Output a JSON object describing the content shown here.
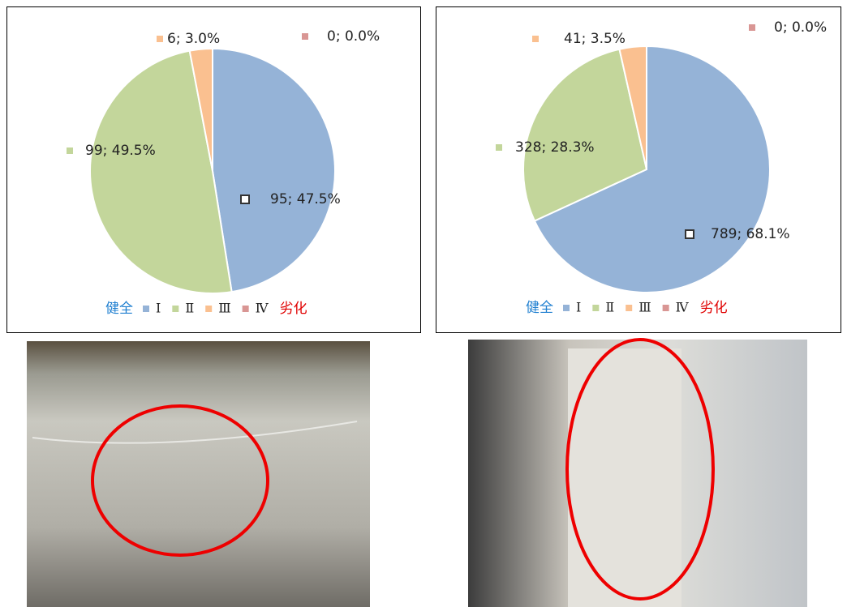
{
  "chart_data": [
    {
      "type": "pie",
      "categories": [
        "Ⅰ",
        "Ⅱ",
        "Ⅲ",
        "Ⅳ"
      ],
      "values": [
        95,
        99,
        6,
        0
      ],
      "value_labels": [
        "95; 47.5%",
        "99; 49.5%",
        "6; 3.0%",
        "0; 0.0%"
      ],
      "colors": [
        "#95b3d7",
        "#c3d69b",
        "#fac090",
        "#d99694"
      ],
      "legend_left": "健全",
      "legend_right": "劣化"
    },
    {
      "type": "pie",
      "categories": [
        "Ⅰ",
        "Ⅱ",
        "Ⅲ",
        "Ⅳ"
      ],
      "values": [
        789,
        328,
        41,
        0
      ],
      "value_labels": [
        "789; 68.1%",
        "328; 28.3%",
        "41; 3.5%",
        "0; 0.0%"
      ],
      "colors": [
        "#95b3d7",
        "#c3d69b",
        "#fac090",
        "#d99694"
      ],
      "legend_left": "健全",
      "legend_right": "劣化"
    }
  ]
}
